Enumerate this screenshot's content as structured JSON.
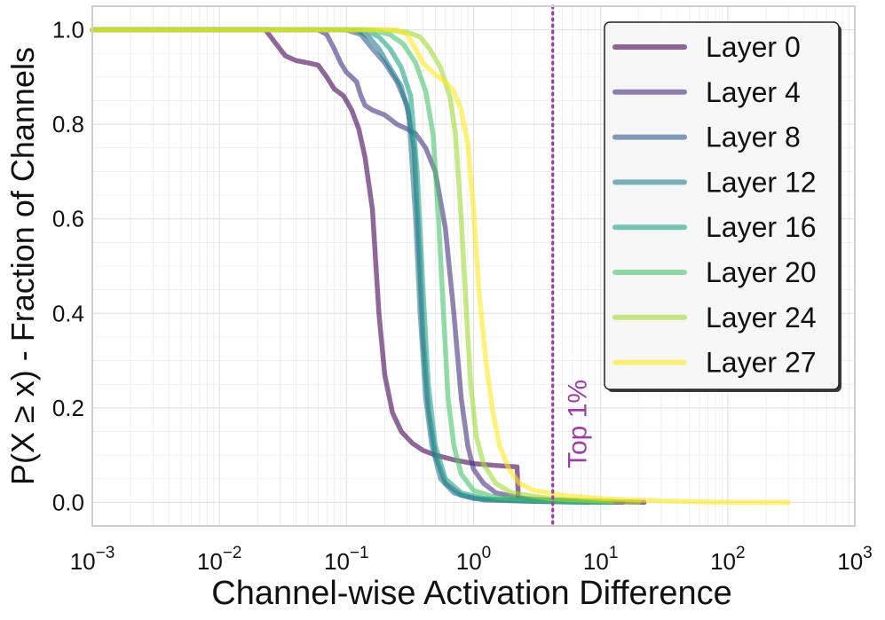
{
  "chart_data": {
    "type": "line",
    "title": "",
    "xlabel": "Channel-wise Activation Difference",
    "ylabel": "P(X ≥ x) - Fraction of Channels",
    "xscale": "log",
    "xlim": [
      0.001,
      1000
    ],
    "ylim": [
      -0.05,
      1.05
    ],
    "x_ticks": [
      {
        "value": 0.001,
        "base": "10",
        "exp": "−3"
      },
      {
        "value": 0.01,
        "base": "10",
        "exp": "−2"
      },
      {
        "value": 0.1,
        "base": "10",
        "exp": "−1"
      },
      {
        "value": 1,
        "base": "10",
        "exp": "0"
      },
      {
        "value": 10,
        "base": "10",
        "exp": "1"
      },
      {
        "value": 100,
        "base": "10",
        "exp": "2"
      },
      {
        "value": 1000,
        "base": "10",
        "exp": "3"
      }
    ],
    "y_ticks": [
      {
        "value": 0.0,
        "label": "0.0"
      },
      {
        "value": 0.2,
        "label": "0.2"
      },
      {
        "value": 0.4,
        "label": "0.4"
      },
      {
        "value": 0.6,
        "label": "0.6"
      },
      {
        "value": 0.8,
        "label": "0.8"
      },
      {
        "value": 1.0,
        "label": "1.0"
      }
    ],
    "grid": true,
    "legend_position": "top-right",
    "threshold": {
      "x": 4.2,
      "label": "Top 1%",
      "color": "#9b3fa6"
    },
    "series": [
      {
        "name": "Layer 0",
        "color": "#440154",
        "points": [
          [
            0.001,
            1.0
          ],
          [
            0.023,
            1.0
          ],
          [
            0.028,
            0.97
          ],
          [
            0.033,
            0.945
          ],
          [
            0.04,
            0.935
          ],
          [
            0.05,
            0.93
          ],
          [
            0.06,
            0.925
          ],
          [
            0.07,
            0.9
          ],
          [
            0.08,
            0.875
          ],
          [
            0.095,
            0.86
          ],
          [
            0.11,
            0.83
          ],
          [
            0.125,
            0.79
          ],
          [
            0.14,
            0.73
          ],
          [
            0.16,
            0.62
          ],
          [
            0.18,
            0.4
          ],
          [
            0.2,
            0.27
          ],
          [
            0.23,
            0.19
          ],
          [
            0.27,
            0.15
          ],
          [
            0.33,
            0.125
          ],
          [
            0.4,
            0.11
          ],
          [
            0.5,
            0.1
          ],
          [
            0.7,
            0.09
          ],
          [
            1.0,
            0.082
          ],
          [
            1.5,
            0.078
          ],
          [
            2.2,
            0.075
          ],
          [
            2.25,
            0.01
          ],
          [
            3,
            0.005
          ],
          [
            10,
            0.002
          ],
          [
            22,
            0.0
          ]
        ]
      },
      {
        "name": "Layer 4",
        "color": "#46327e",
        "points": [
          [
            0.001,
            1.0
          ],
          [
            0.06,
            1.0
          ],
          [
            0.07,
            0.99
          ],
          [
            0.08,
            0.96
          ],
          [
            0.09,
            0.93
          ],
          [
            0.1,
            0.91
          ],
          [
            0.11,
            0.9
          ],
          [
            0.12,
            0.89
          ],
          [
            0.13,
            0.86
          ],
          [
            0.14,
            0.84
          ],
          [
            0.16,
            0.83
          ],
          [
            0.2,
            0.82
          ],
          [
            0.25,
            0.8
          ],
          [
            0.3,
            0.79
          ],
          [
            0.35,
            0.78
          ],
          [
            0.42,
            0.75
          ],
          [
            0.5,
            0.7
          ],
          [
            0.6,
            0.58
          ],
          [
            0.7,
            0.4
          ],
          [
            0.8,
            0.22
          ],
          [
            0.9,
            0.12
          ],
          [
            1.0,
            0.07
          ],
          [
            1.2,
            0.04
          ],
          [
            1.5,
            0.02
          ],
          [
            2.5,
            0.008
          ],
          [
            6,
            0.002
          ],
          [
            15,
            0.0
          ]
        ]
      },
      {
        "name": "Layer 8",
        "color": "#365c8d",
        "points": [
          [
            0.001,
            1.0
          ],
          [
            0.1,
            1.0
          ],
          [
            0.13,
            0.99
          ],
          [
            0.16,
            0.96
          ],
          [
            0.2,
            0.93
          ],
          [
            0.25,
            0.89
          ],
          [
            0.3,
            0.84
          ],
          [
            0.34,
            0.75
          ],
          [
            0.37,
            0.55
          ],
          [
            0.4,
            0.35
          ],
          [
            0.44,
            0.2
          ],
          [
            0.5,
            0.1
          ],
          [
            0.6,
            0.04
          ],
          [
            0.8,
            0.015
          ],
          [
            1.2,
            0.005
          ],
          [
            3,
            0.002
          ],
          [
            8,
            0.0
          ]
        ]
      },
      {
        "name": "Layer 12",
        "color": "#277f8e",
        "points": [
          [
            0.001,
            1.0
          ],
          [
            0.12,
            1.0
          ],
          [
            0.15,
            0.985
          ],
          [
            0.18,
            0.96
          ],
          [
            0.22,
            0.92
          ],
          [
            0.27,
            0.88
          ],
          [
            0.31,
            0.82
          ],
          [
            0.35,
            0.6
          ],
          [
            0.38,
            0.4
          ],
          [
            0.42,
            0.22
          ],
          [
            0.47,
            0.12
          ],
          [
            0.55,
            0.05
          ],
          [
            0.7,
            0.02
          ],
          [
            1.0,
            0.008
          ],
          [
            3,
            0.002
          ],
          [
            10,
            0.0
          ]
        ]
      },
      {
        "name": "Layer 16",
        "color": "#1fa187",
        "points": [
          [
            0.001,
            1.0
          ],
          [
            0.14,
            1.0
          ],
          [
            0.18,
            0.985
          ],
          [
            0.22,
            0.96
          ],
          [
            0.27,
            0.92
          ],
          [
            0.32,
            0.86
          ],
          [
            0.36,
            0.7
          ],
          [
            0.4,
            0.45
          ],
          [
            0.44,
            0.25
          ],
          [
            0.5,
            0.12
          ],
          [
            0.6,
            0.05
          ],
          [
            0.8,
            0.02
          ],
          [
            1.2,
            0.008
          ],
          [
            4,
            0.002
          ],
          [
            12,
            0.0
          ]
        ]
      },
      {
        "name": "Layer 20",
        "color": "#4ac16d",
        "points": [
          [
            0.001,
            1.0
          ],
          [
            0.16,
            1.0
          ],
          [
            0.22,
            0.99
          ],
          [
            0.28,
            0.97
          ],
          [
            0.35,
            0.93
          ],
          [
            0.42,
            0.87
          ],
          [
            0.48,
            0.78
          ],
          [
            0.53,
            0.6
          ],
          [
            0.58,
            0.4
          ],
          [
            0.63,
            0.22
          ],
          [
            0.7,
            0.12
          ],
          [
            0.8,
            0.06
          ],
          [
            1.0,
            0.025
          ],
          [
            1.5,
            0.01
          ],
          [
            4,
            0.003
          ],
          [
            12,
            0.0
          ]
        ]
      },
      {
        "name": "Layer 24",
        "color": "#a0da39",
        "points": [
          [
            0.001,
            1.0
          ],
          [
            0.2,
            1.0
          ],
          [
            0.3,
            0.995
          ],
          [
            0.38,
            0.985
          ],
          [
            0.45,
            0.96
          ],
          [
            0.55,
            0.92
          ],
          [
            0.65,
            0.86
          ],
          [
            0.72,
            0.78
          ],
          [
            0.8,
            0.6
          ],
          [
            0.88,
            0.4
          ],
          [
            0.95,
            0.25
          ],
          [
            1.05,
            0.14
          ],
          [
            1.2,
            0.08
          ],
          [
            1.5,
            0.04
          ],
          [
            2,
            0.02
          ],
          [
            4,
            0.008
          ],
          [
            10,
            0.003
          ],
          [
            20,
            0.0
          ]
        ]
      },
      {
        "name": "Layer 27",
        "color": "#fde725",
        "points": [
          [
            0.001,
            1.0
          ],
          [
            0.25,
            1.0
          ],
          [
            0.3,
            0.99
          ],
          [
            0.35,
            0.96
          ],
          [
            0.4,
            0.93
          ],
          [
            0.5,
            0.905
          ],
          [
            0.6,
            0.89
          ],
          [
            0.7,
            0.87
          ],
          [
            0.8,
            0.83
          ],
          [
            0.9,
            0.76
          ],
          [
            1.0,
            0.62
          ],
          [
            1.1,
            0.45
          ],
          [
            1.25,
            0.3
          ],
          [
            1.4,
            0.2
          ],
          [
            1.6,
            0.12
          ],
          [
            1.9,
            0.07
          ],
          [
            2.3,
            0.04
          ],
          [
            3,
            0.025
          ],
          [
            5,
            0.015
          ],
          [
            10,
            0.008
          ],
          [
            30,
            0.003
          ],
          [
            100,
            0.0
          ],
          [
            300,
            0.0
          ]
        ]
      }
    ]
  }
}
